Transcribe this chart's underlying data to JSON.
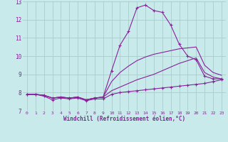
{
  "xlabel": "Windchill (Refroidissement éolien,°C)",
  "xlim": [
    -0.5,
    23.5
  ],
  "ylim": [
    7,
    13
  ],
  "yticks": [
    7,
    8,
    9,
    10,
    11,
    12,
    13
  ],
  "xticks": [
    0,
    1,
    2,
    3,
    4,
    5,
    6,
    7,
    8,
    9,
    10,
    11,
    12,
    13,
    14,
    15,
    16,
    17,
    18,
    19,
    20,
    21,
    22,
    23
  ],
  "bg_color": "#c8eaea",
  "line_color": "#882299",
  "grid_color": "#aacccc",
  "lines": [
    {
      "x": [
        0,
        1,
        2,
        3,
        4,
        5,
        6,
        7,
        8,
        9,
        10,
        11,
        12,
        13,
        14,
        15,
        16,
        17,
        18,
        19,
        20,
        21,
        22,
        23
      ],
      "y": [
        7.9,
        7.9,
        7.8,
        7.6,
        7.7,
        7.65,
        7.7,
        7.55,
        7.65,
        7.65,
        7.9,
        8.0,
        8.05,
        8.1,
        8.15,
        8.2,
        8.25,
        8.3,
        8.35,
        8.4,
        8.45,
        8.5,
        8.6,
        8.7
      ],
      "marker": true,
      "lw": 0.8
    },
    {
      "x": [
        0,
        1,
        2,
        3,
        4,
        5,
        6,
        7,
        8,
        9,
        10,
        11,
        12,
        13,
        14,
        15,
        16,
        17,
        18,
        19,
        20,
        21,
        22,
        23
      ],
      "y": [
        7.9,
        7.9,
        7.85,
        7.7,
        7.75,
        7.7,
        7.75,
        7.6,
        7.7,
        7.75,
        8.1,
        8.3,
        8.5,
        8.7,
        8.85,
        9.0,
        9.2,
        9.4,
        9.6,
        9.75,
        9.9,
        9.1,
        8.85,
        8.75
      ],
      "marker": false,
      "lw": 0.8
    },
    {
      "x": [
        0,
        1,
        2,
        3,
        4,
        5,
        6,
        7,
        8,
        9,
        10,
        11,
        12,
        13,
        14,
        15,
        16,
        17,
        18,
        19,
        20,
        21,
        22,
        23
      ],
      "y": [
        7.9,
        7.9,
        7.85,
        7.7,
        7.75,
        7.7,
        7.75,
        7.6,
        7.7,
        7.75,
        9.2,
        10.6,
        11.35,
        12.65,
        12.8,
        12.5,
        12.4,
        11.7,
        10.65,
        10.0,
        9.8,
        8.9,
        8.75,
        8.75
      ],
      "marker": true,
      "lw": 0.8
    },
    {
      "x": [
        0,
        1,
        2,
        3,
        4,
        5,
        6,
        7,
        8,
        9,
        10,
        11,
        12,
        13,
        14,
        15,
        16,
        17,
        18,
        19,
        20,
        21,
        22,
        23
      ],
      "y": [
        7.9,
        7.9,
        7.85,
        7.7,
        7.75,
        7.7,
        7.75,
        7.6,
        7.7,
        7.75,
        8.6,
        9.1,
        9.45,
        9.75,
        9.95,
        10.1,
        10.2,
        10.3,
        10.4,
        10.45,
        10.5,
        9.5,
        9.1,
        8.95
      ],
      "marker": false,
      "lw": 0.8
    }
  ]
}
